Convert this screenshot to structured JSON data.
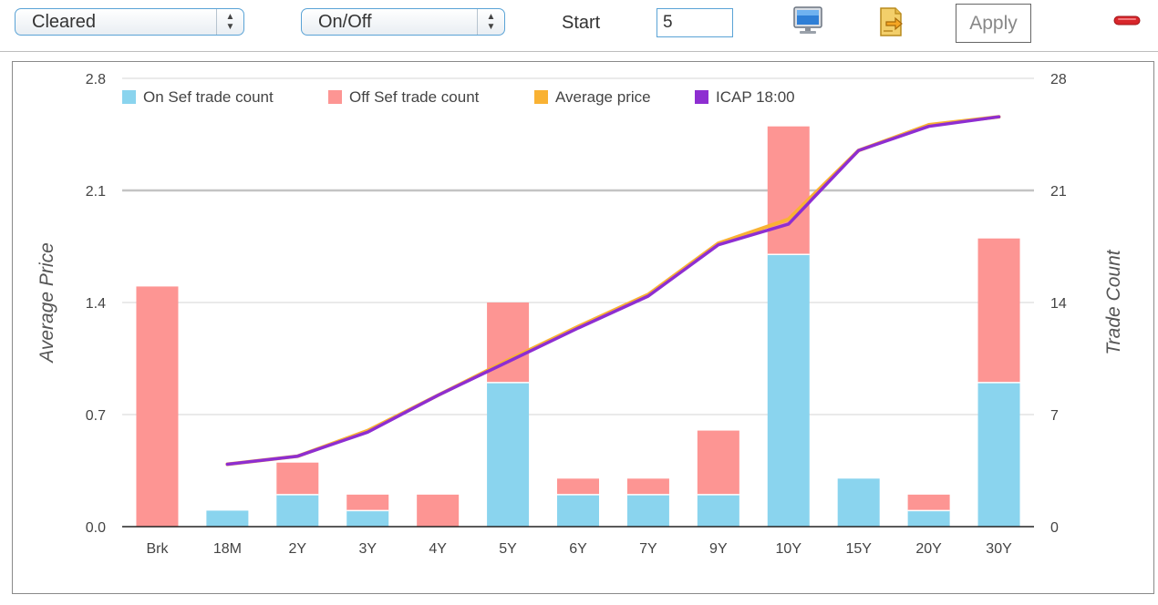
{
  "toolbar": {
    "cleared_select": "Cleared",
    "onoff_select": "On/Off",
    "start_label": "Start",
    "start_value": "5",
    "monitor_icon": "monitor-icon",
    "export_icon": "export-icon",
    "apply_label": "Apply",
    "remove_icon": "minus-icon"
  },
  "chart_data": {
    "type": "bar",
    "categories": [
      "Brk",
      "18M",
      "2Y",
      "3Y",
      "4Y",
      "5Y",
      "6Y",
      "7Y",
      "9Y",
      "10Y",
      "15Y",
      "20Y",
      "30Y"
    ],
    "series": [
      {
        "name": "On Sef trade count",
        "kind": "bar",
        "axis": "right",
        "stack": "count",
        "color": "#8ad4ee",
        "values": [
          0,
          1,
          2,
          1,
          0,
          9,
          2,
          2,
          2,
          17,
          3,
          1,
          9
        ]
      },
      {
        "name": "Off Sef trade count",
        "kind": "bar",
        "axis": "right",
        "stack": "count",
        "color": "#fd9593",
        "values": [
          15,
          0,
          2,
          1,
          2,
          5,
          1,
          1,
          4,
          8,
          0,
          1,
          9
        ]
      },
      {
        "name": "Average price",
        "kind": "line",
        "axis": "left",
        "color": "#f9b233",
        "values": [
          null,
          0.39,
          0.44,
          0.6,
          0.82,
          1.04,
          1.25,
          1.45,
          1.77,
          1.92,
          2.35,
          2.51,
          2.56
        ]
      },
      {
        "name": "ICAP 18:00",
        "kind": "line",
        "axis": "left",
        "color": "#8e2ed1",
        "values": [
          null,
          0.39,
          0.44,
          0.59,
          0.82,
          1.03,
          1.24,
          1.44,
          1.76,
          1.89,
          2.35,
          2.5,
          2.56
        ]
      }
    ],
    "ylabel": "Average Price",
    "y2label": "Trade Count",
    "ylim": [
      0,
      2.8
    ],
    "y2lim": [
      0,
      28
    ],
    "yticks": [
      "0.0",
      "0.7",
      "1.4",
      "2.1",
      "2.8"
    ],
    "y2ticks": [
      "0",
      "7",
      "14",
      "21",
      "28"
    ],
    "grid": true,
    "legend_position": "top-left"
  }
}
